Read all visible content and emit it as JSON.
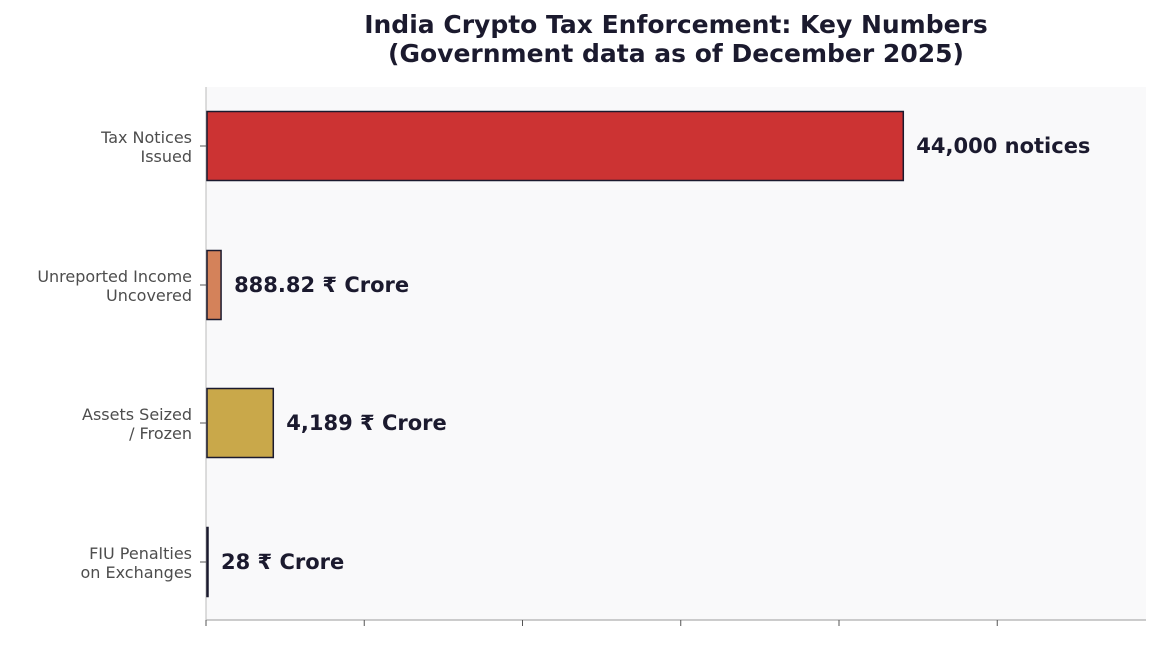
{
  "chart_data": {
    "type": "bar",
    "orientation": "horizontal",
    "title_lines": [
      "India Crypto Tax Enforcement: Key Numbers",
      "(Government data as of December 2025)"
    ],
    "categories": [
      [
        "Tax Notices",
        "Issued"
      ],
      [
        "Unreported Income",
        "Uncovered"
      ],
      [
        "Assets Seized",
        "/ Frozen"
      ],
      [
        "FIU Penalties",
        "on Exchanges"
      ]
    ],
    "values": [
      44000,
      888.82,
      4189,
      28
    ],
    "value_labels": [
      "44,000 notices",
      "888.82 ₹ Crore",
      "4,189 ₹ Crore",
      "28 ₹ Crore"
    ],
    "colors": [
      "#cc3333",
      "#d4825a",
      "#c9a84a",
      "#cccccc"
    ],
    "xlim": [
      0,
      59400
    ],
    "x_ticks": [
      0,
      10000,
      20000,
      30000,
      40000,
      50000
    ],
    "x_tick_labels_visible": false,
    "grid": false,
    "legend": "none"
  }
}
